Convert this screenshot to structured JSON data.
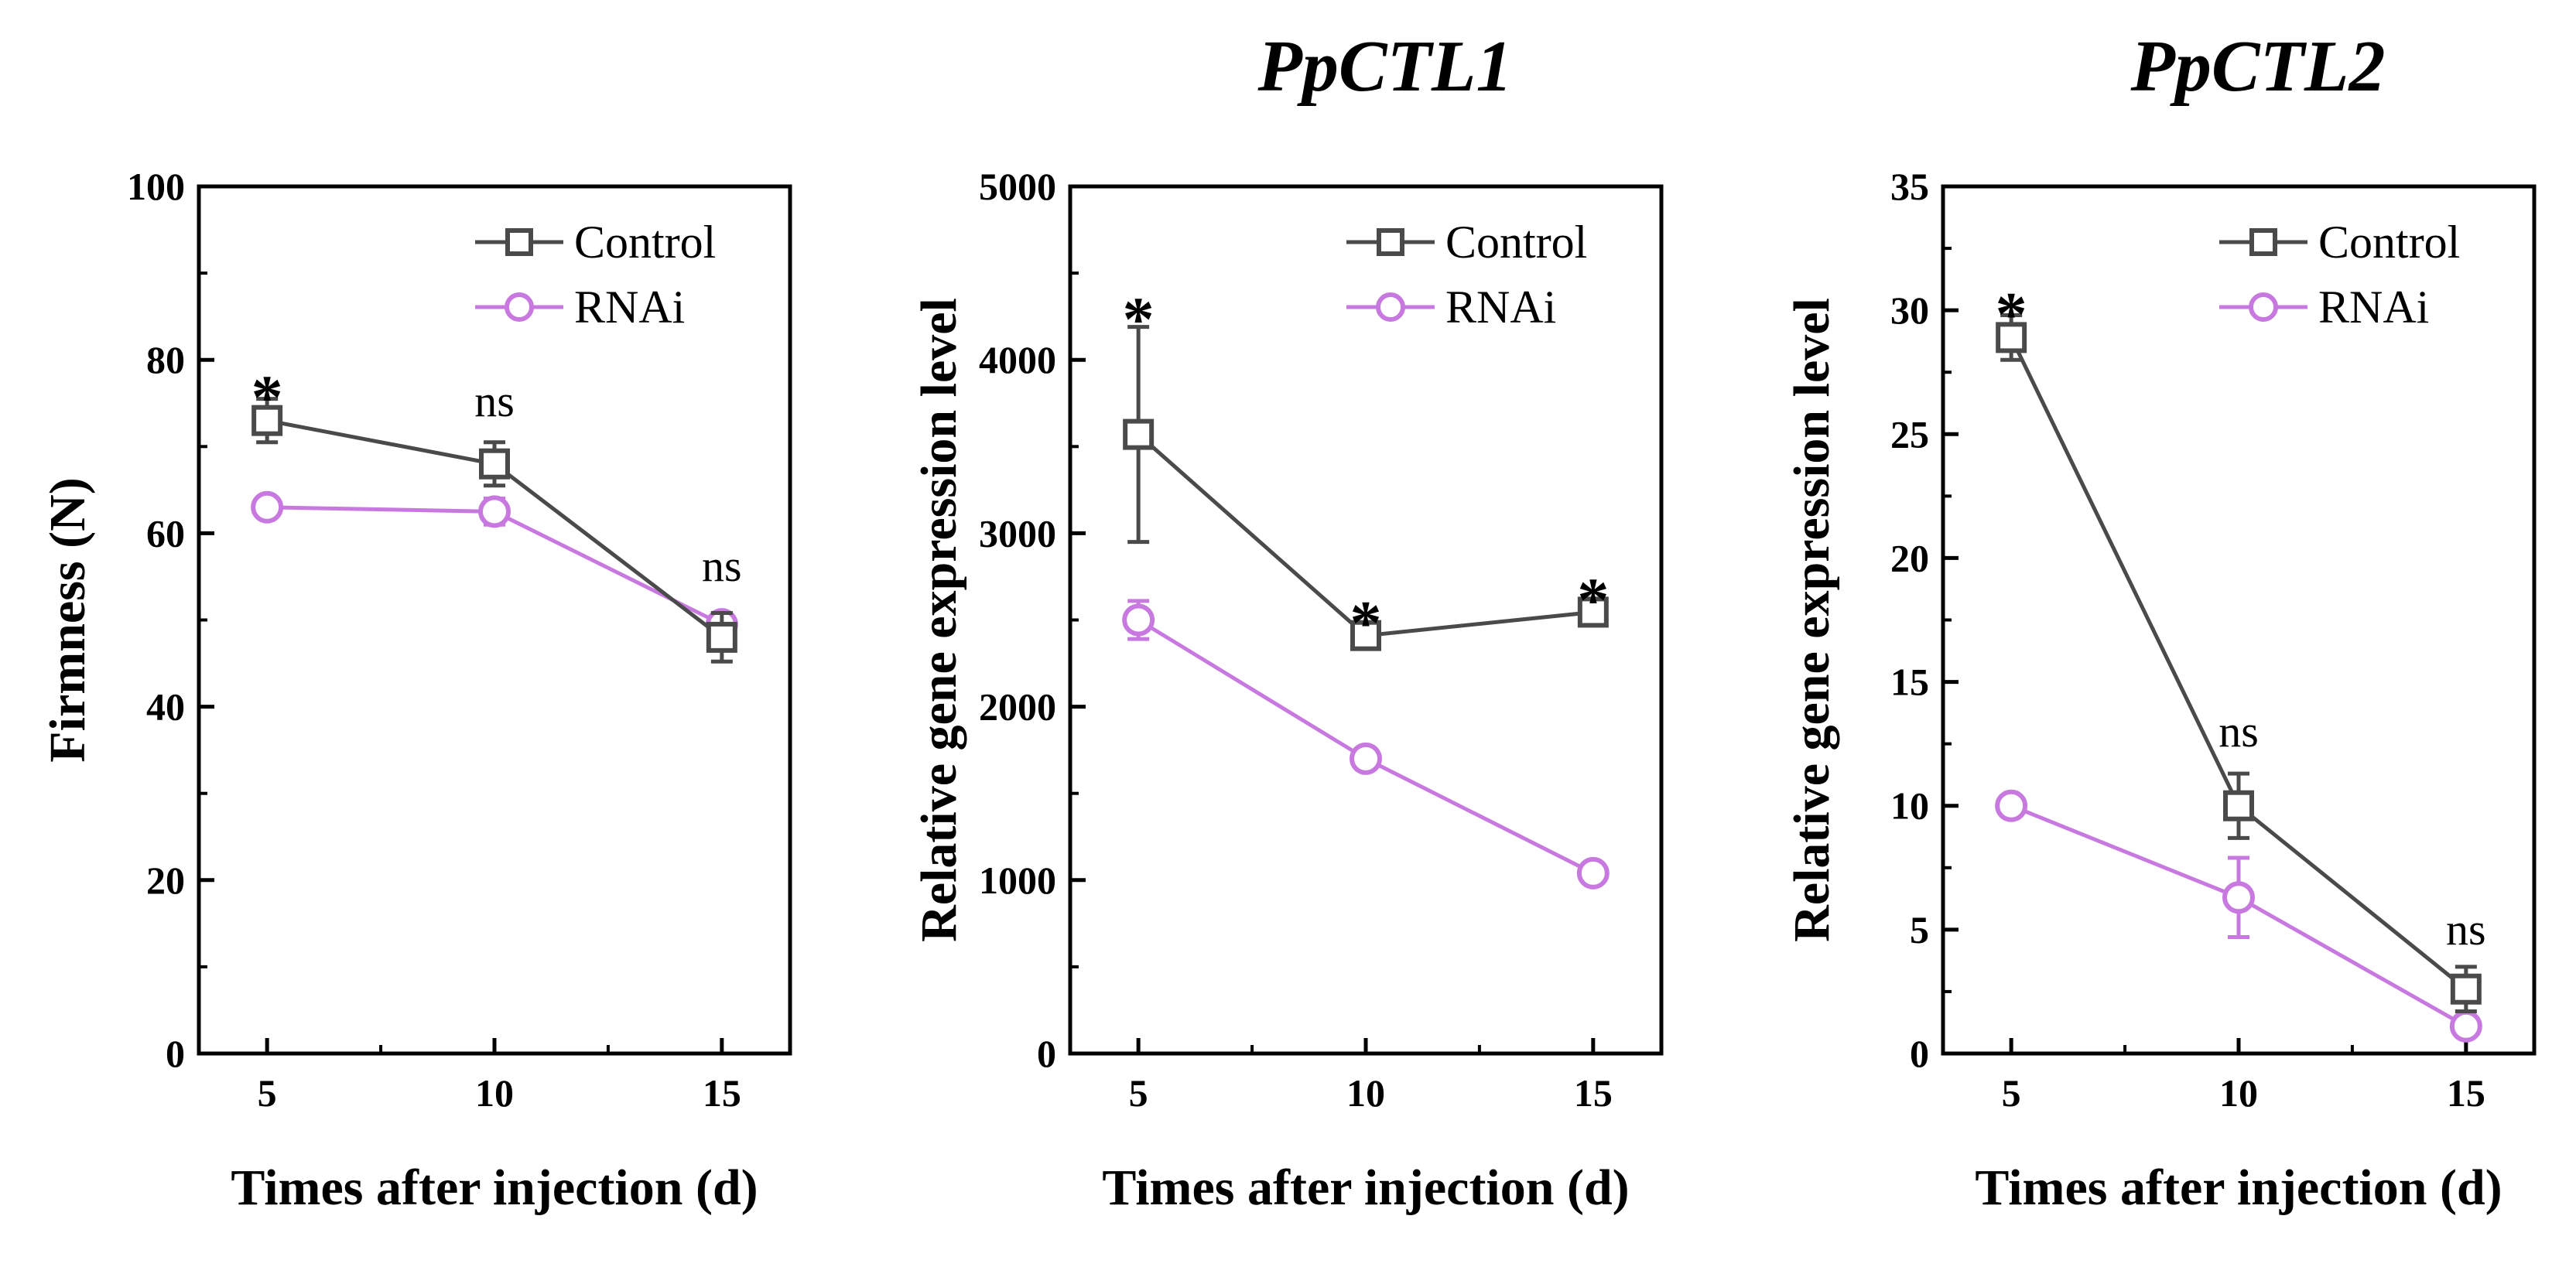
{
  "chart_data": [
    {
      "type": "line",
      "title": "",
      "xlabel": "Times after injection (d)",
      "ylabel": "Firmness (N)",
      "x": [
        5,
        10,
        15
      ],
      "xlim": [
        3.5,
        16.5
      ],
      "ylim": [
        0,
        100
      ],
      "yticks": [
        0,
        20,
        40,
        60,
        80,
        100
      ],
      "series": [
        {
          "name": "Control",
          "marker": "square",
          "color": "#4a4a4a",
          "values": [
            73,
            68,
            48
          ],
          "errors": [
            2.5,
            2.5,
            2.8
          ]
        },
        {
          "name": "RNAi",
          "marker": "circle",
          "color": "#c879e0",
          "values": [
            63,
            62.5,
            49.5
          ],
          "errors": [
            0.8,
            1.5,
            1.0
          ]
        }
      ],
      "significance": [
        {
          "x": 5,
          "label": "*",
          "y_anchor": 77
        },
        {
          "x": 10,
          "label": "ns",
          "y_anchor": 73.5
        },
        {
          "x": 15,
          "label": "ns",
          "y_anchor": 54.5
        }
      ],
      "legend": "top-right"
    },
    {
      "type": "line",
      "title": "PpCTL1",
      "xlabel": "Times after injection (d)",
      "ylabel": "Relative gene expression level",
      "x": [
        5,
        10,
        15
      ],
      "xlim": [
        3.5,
        16.5
      ],
      "ylim": [
        0,
        5000
      ],
      "yticks": [
        0,
        1000,
        2000,
        3000,
        4000,
        5000
      ],
      "series": [
        {
          "name": "Control",
          "marker": "square",
          "color": "#4a4a4a",
          "values": [
            3570,
            2410,
            2545
          ],
          "errors": [
            620,
            40,
            40
          ]
        },
        {
          "name": "RNAi",
          "marker": "circle",
          "color": "#c879e0",
          "values": [
            2500,
            1700,
            1040
          ],
          "errors": [
            110,
            60,
            30
          ]
        }
      ],
      "significance": [
        {
          "x": 5,
          "label": "*",
          "y_anchor": 4300
        },
        {
          "x": 10,
          "label": "*",
          "y_anchor": 2550
        },
        {
          "x": 15,
          "label": "*",
          "y_anchor": 2680
        }
      ],
      "legend": "top-right"
    },
    {
      "type": "line",
      "title": "PpCTL2",
      "xlabel": "Times after injection (d)",
      "ylabel": "Relative gene expression level",
      "x": [
        5,
        10,
        15
      ],
      "xlim": [
        3.5,
        16.5
      ],
      "ylim": [
        0,
        35
      ],
      "yticks": [
        0,
        5,
        10,
        15,
        20,
        25,
        30,
        35
      ],
      "series": [
        {
          "name": "Control",
          "marker": "square",
          "color": "#4a4a4a",
          "values": [
            28.9,
            10.0,
            2.6
          ],
          "errors": [
            0.9,
            1.3,
            0.9
          ]
        },
        {
          "name": "RNAi",
          "marker": "circle",
          "color": "#c879e0",
          "values": [
            10.0,
            6.3,
            1.1
          ],
          "errors": [
            0.2,
            1.6,
            0.3
          ]
        }
      ],
      "significance": [
        {
          "x": 5,
          "label": "*",
          "y_anchor": 30.3
        },
        {
          "x": 10,
          "label": "ns",
          "y_anchor": 12.4
        },
        {
          "x": 15,
          "label": "ns",
          "y_anchor": 4.4
        }
      ],
      "legend": "top-right"
    }
  ]
}
